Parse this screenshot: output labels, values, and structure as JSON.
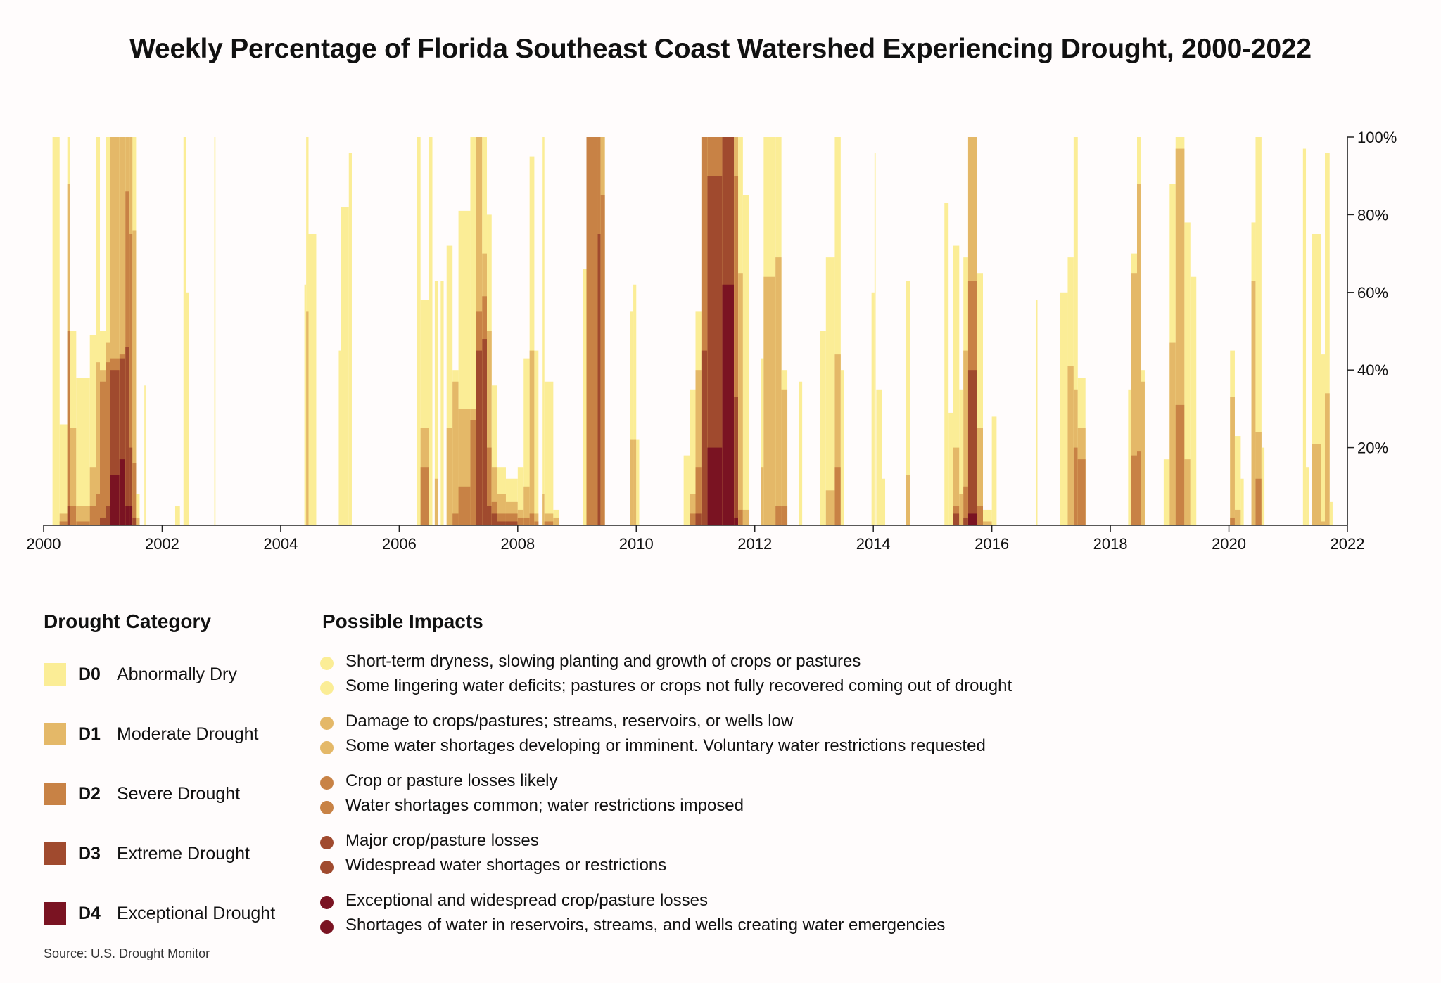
{
  "title": "Weekly Percentage of Florida Southeast Coast Watershed Experiencing Drought, 2000-2022",
  "source": "Source: U.S. Drought Monitor",
  "legend": {
    "category_heading": "Drought Category",
    "impacts_heading": "Possible Impacts",
    "items": [
      {
        "code": "D0",
        "label": "Abnormally Dry",
        "color": "#fbed96",
        "impacts": [
          "Short-term dryness, slowing planting and growth of crops or pastures",
          "Some lingering water deficits; pastures or crops not fully recovered coming out of drought"
        ]
      },
      {
        "code": "D1",
        "label": "Moderate Drought",
        "color": "#e4b868",
        "impacts": [
          "Damage to crops/pastures; streams, reservoirs, or wells low",
          "Some water shortages developing or imminent. Voluntary water restrictions requested"
        ]
      },
      {
        "code": "D2",
        "label": "Severe Drought",
        "color": "#c88245",
        "impacts": [
          "Crop or pasture losses likely",
          "Water shortages common; water restrictions imposed"
        ]
      },
      {
        "code": "D3",
        "label": "Extreme Drought",
        "color": "#a04a2e",
        "impacts": [
          "Major crop/pasture losses",
          "Widespread water shortages or restrictions"
        ]
      },
      {
        "code": "D4",
        "label": "Exceptional Drought",
        "color": "#7a1322",
        "impacts": [
          "Exceptional and widespread crop/pasture losses",
          "Shortages of water in reservoirs, streams, and wells creating water emergencies"
        ]
      }
    ]
  },
  "chart_data": {
    "type": "area",
    "xlim": [
      2000,
      2022
    ],
    "ylim": [
      0,
      100
    ],
    "x_ticks": [
      "2000",
      "2002",
      "2004",
      "2006",
      "2008",
      "2010",
      "2012",
      "2014",
      "2016",
      "2018",
      "2020",
      "2022"
    ],
    "y_ticks": [
      "20%",
      "40%",
      "60%",
      "80%",
      "100%"
    ],
    "y_tick_values": [
      20,
      40,
      60,
      80,
      100
    ],
    "grid": false,
    "series_order": [
      "D0",
      "D1",
      "D2",
      "D3",
      "D4"
    ],
    "note_values": "each period: [start year, end year, cumulative % area in D0-D4, D1-D4, D2-D4, D3-D4, D4]",
    "periods": [
      [
        2000.15,
        2000.27,
        100,
        0,
        0,
        0,
        0
      ],
      [
        2000.27,
        2000.4,
        26,
        3,
        1,
        0,
        0
      ],
      [
        2000.4,
        2000.45,
        100,
        88,
        50,
        5,
        0
      ],
      [
        2000.45,
        2000.55,
        50,
        25,
        5,
        0,
        0
      ],
      [
        2000.55,
        2000.78,
        38,
        5,
        1,
        0,
        0
      ],
      [
        2000.78,
        2000.88,
        49,
        15,
        5,
        0,
        0
      ],
      [
        2000.88,
        2000.95,
        100,
        42,
        8,
        0,
        0
      ],
      [
        2000.95,
        2001.05,
        50,
        40,
        37,
        2,
        0
      ],
      [
        2001.05,
        2001.12,
        100,
        47,
        42,
        5,
        0
      ],
      [
        2001.12,
        2001.28,
        100,
        100,
        43,
        40,
        13
      ],
      [
        2001.28,
        2001.38,
        100,
        100,
        44,
        43,
        17
      ],
      [
        2001.38,
        2001.45,
        100,
        100,
        86,
        46,
        5
      ],
      [
        2001.45,
        2001.5,
        100,
        100,
        75,
        20,
        5
      ],
      [
        2001.5,
        2001.56,
        100,
        76,
        16,
        2,
        0
      ],
      [
        2001.56,
        2001.62,
        8,
        2,
        0,
        0,
        0
      ],
      [
        2001.7,
        2001.72,
        36,
        0,
        0,
        0,
        0
      ],
      [
        2002.22,
        2002.3,
        5,
        0,
        0,
        0,
        0
      ],
      [
        2002.36,
        2002.4,
        100,
        0,
        0,
        0,
        0
      ],
      [
        2002.4,
        2002.45,
        60,
        0,
        0,
        0,
        0
      ],
      [
        2002.88,
        2002.9,
        100,
        0,
        0,
        0,
        0
      ],
      [
        2004.4,
        2004.43,
        62,
        0,
        0,
        0,
        0
      ],
      [
        2004.43,
        2004.47,
        100,
        55,
        0,
        0,
        0
      ],
      [
        2004.47,
        2004.6,
        75,
        0,
        0,
        0,
        0
      ],
      [
        2004.98,
        2005.02,
        45,
        0,
        0,
        0,
        0
      ],
      [
        2005.02,
        2005.15,
        82,
        0,
        0,
        0,
        0
      ],
      [
        2005.15,
        2005.2,
        96,
        0,
        0,
        0,
        0
      ],
      [
        2006.3,
        2006.36,
        100,
        0,
        0,
        0,
        0
      ],
      [
        2006.36,
        2006.5,
        58,
        25,
        15,
        0,
        0
      ],
      [
        2006.5,
        2006.56,
        100,
        0,
        0,
        0,
        0
      ],
      [
        2006.6,
        2006.65,
        63,
        12,
        0,
        0,
        0
      ],
      [
        2006.7,
        2006.75,
        63,
        0,
        0,
        0,
        0
      ],
      [
        2006.8,
        2006.9,
        72,
        25,
        0,
        0,
        0
      ],
      [
        2006.9,
        2007.0,
        40,
        37,
        3,
        0,
        0
      ],
      [
        2007.0,
        2007.2,
        81,
        30,
        10,
        0,
        0
      ],
      [
        2007.2,
        2007.3,
        100,
        30,
        27,
        0,
        0
      ],
      [
        2007.3,
        2007.4,
        100,
        100,
        55,
        45,
        0
      ],
      [
        2007.4,
        2007.48,
        100,
        70,
        59,
        48,
        0
      ],
      [
        2007.48,
        2007.56,
        80,
        50,
        20,
        5,
        0
      ],
      [
        2007.56,
        2007.65,
        36,
        15,
        6,
        3,
        0
      ],
      [
        2007.65,
        2007.8,
        15,
        8,
        3,
        1,
        0
      ],
      [
        2007.8,
        2008.0,
        12,
        6,
        3,
        1,
        0
      ],
      [
        2008.0,
        2008.1,
        15,
        4,
        2,
        0,
        0
      ],
      [
        2008.1,
        2008.2,
        43,
        10,
        2,
        0,
        0
      ],
      [
        2008.2,
        2008.28,
        95,
        45,
        3,
        0,
        0
      ],
      [
        2008.28,
        2008.35,
        45,
        3,
        1,
        0,
        0
      ],
      [
        2008.42,
        2008.45,
        100,
        8,
        0,
        0,
        0
      ],
      [
        2008.45,
        2008.6,
        37,
        3,
        1,
        0,
        0
      ],
      [
        2008.6,
        2008.7,
        4,
        2,
        0,
        0,
        0
      ],
      [
        2009.1,
        2009.16,
        66,
        0,
        0,
        0,
        0
      ],
      [
        2009.16,
        2009.35,
        100,
        100,
        100,
        0,
        0
      ],
      [
        2009.35,
        2009.4,
        100,
        100,
        100,
        75,
        0
      ],
      [
        2009.4,
        2009.47,
        100,
        100,
        85,
        0,
        0
      ],
      [
        2009.9,
        2009.95,
        55,
        22,
        0,
        0,
        0
      ],
      [
        2009.95,
        2010.0,
        62,
        22,
        0,
        0,
        0
      ],
      [
        2010.0,
        2010.05,
        22,
        0,
        0,
        0,
        0
      ],
      [
        2010.8,
        2010.9,
        18,
        0,
        0,
        0,
        0
      ],
      [
        2010.9,
        2011.0,
        35,
        8,
        3,
        0,
        0
      ],
      [
        2011.0,
        2011.1,
        55,
        40,
        15,
        3,
        0
      ],
      [
        2011.1,
        2011.2,
        100,
        100,
        100,
        45,
        0
      ],
      [
        2011.2,
        2011.45,
        100,
        100,
        100,
        90,
        20
      ],
      [
        2011.45,
        2011.65,
        100,
        100,
        100,
        100,
        62
      ],
      [
        2011.65,
        2011.72,
        100,
        100,
        90,
        33,
        2
      ],
      [
        2011.72,
        2011.8,
        100,
        65,
        4,
        0,
        0
      ],
      [
        2011.8,
        2011.9,
        85,
        4,
        0,
        0,
        0
      ],
      [
        2012.1,
        2012.15,
        43,
        15,
        0,
        0,
        0
      ],
      [
        2012.15,
        2012.35,
        100,
        64,
        0,
        0,
        0
      ],
      [
        2012.35,
        2012.45,
        100,
        69,
        5,
        0,
        0
      ],
      [
        2012.45,
        2012.55,
        40,
        35,
        5,
        0,
        0
      ],
      [
        2012.75,
        2012.8,
        37,
        0,
        0,
        0,
        0
      ],
      [
        2013.1,
        2013.2,
        50,
        0,
        0,
        0,
        0
      ],
      [
        2013.2,
        2013.35,
        69,
        9,
        0,
        0,
        0
      ],
      [
        2013.35,
        2013.45,
        100,
        44,
        15,
        0,
        0
      ],
      [
        2013.45,
        2013.5,
        40,
        0,
        0,
        0,
        0
      ],
      [
        2013.97,
        2014.02,
        60,
        0,
        0,
        0,
        0
      ],
      [
        2014.02,
        2014.04,
        96,
        0,
        0,
        0,
        0
      ],
      [
        2014.05,
        2014.15,
        35,
        0,
        0,
        0,
        0
      ],
      [
        2014.15,
        2014.2,
        12,
        0,
        0,
        0,
        0
      ],
      [
        2014.55,
        2014.62,
        63,
        13,
        0,
        0,
        0
      ],
      [
        2015.2,
        2015.27,
        83,
        0,
        0,
        0,
        0
      ],
      [
        2015.27,
        2015.35,
        29,
        0,
        0,
        0,
        0
      ],
      [
        2015.35,
        2015.45,
        72,
        20,
        5,
        3,
        0
      ],
      [
        2015.45,
        2015.52,
        35,
        8,
        0,
        0,
        0
      ],
      [
        2015.52,
        2015.6,
        69,
        45,
        10,
        2,
        0
      ],
      [
        2015.6,
        2015.75,
        100,
        100,
        63,
        40,
        3
      ],
      [
        2015.75,
        2015.85,
        65,
        25,
        5,
        0,
        0
      ],
      [
        2015.85,
        2016.0,
        4,
        1,
        0,
        0,
        0
      ],
      [
        2016.0,
        2016.08,
        28,
        0,
        0,
        0,
        0
      ],
      [
        2016.75,
        2016.77,
        58,
        0,
        0,
        0,
        0
      ],
      [
        2017.15,
        2017.28,
        60,
        0,
        0,
        0,
        0
      ],
      [
        2017.28,
        2017.38,
        69,
        41,
        0,
        0,
        0
      ],
      [
        2017.38,
        2017.45,
        100,
        35,
        20,
        0,
        0
      ],
      [
        2017.45,
        2017.58,
        38,
        25,
        17,
        0,
        0
      ],
      [
        2018.3,
        2018.35,
        35,
        0,
        0,
        0,
        0
      ],
      [
        2018.35,
        2018.45,
        70,
        65,
        18,
        0,
        0
      ],
      [
        2018.45,
        2018.52,
        100,
        88,
        19,
        0,
        0
      ],
      [
        2018.52,
        2018.58,
        40,
        37,
        0,
        0,
        0
      ],
      [
        2018.9,
        2019.0,
        17,
        0,
        0,
        0,
        0
      ],
      [
        2019.0,
        2019.1,
        88,
        47,
        0,
        0,
        0
      ],
      [
        2019.1,
        2019.25,
        100,
        97,
        31,
        0,
        0
      ],
      [
        2019.25,
        2019.35,
        78,
        17,
        0,
        0,
        0
      ],
      [
        2019.35,
        2019.45,
        64,
        0,
        0,
        0,
        0
      ],
      [
        2020.02,
        2020.1,
        45,
        33,
        2,
        0,
        0
      ],
      [
        2020.1,
        2020.2,
        23,
        4,
        0,
        0,
        0
      ],
      [
        2020.2,
        2020.25,
        12,
        0,
        0,
        0,
        0
      ],
      [
        2020.38,
        2020.45,
        78,
        63,
        0,
        0,
        0
      ],
      [
        2020.45,
        2020.55,
        100,
        24,
        12,
        0,
        0
      ],
      [
        2020.55,
        2020.6,
        20,
        0,
        0,
        0,
        0
      ],
      [
        2021.25,
        2021.3,
        97,
        0,
        0,
        0,
        0
      ],
      [
        2021.3,
        2021.35,
        15,
        0,
        0,
        0,
        0
      ],
      [
        2021.4,
        2021.55,
        75,
        21,
        0,
        0,
        0
      ],
      [
        2021.55,
        2021.62,
        44,
        1,
        0,
        0,
        0
      ],
      [
        2021.62,
        2021.7,
        96,
        34,
        0,
        0,
        0
      ],
      [
        2021.7,
        2021.75,
        6,
        0,
        0,
        0,
        0
      ]
    ]
  }
}
